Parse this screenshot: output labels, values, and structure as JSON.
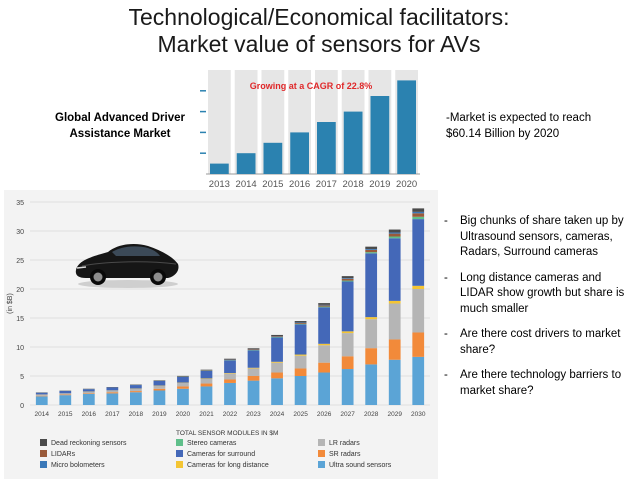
{
  "slide": {
    "title_line1": "Technological/Economical facilitators:",
    "title_line2": "Market value of sensors for AVs",
    "adas_label_line1": "Global Advanced Driver",
    "adas_label_line2": "Assistance Market",
    "adas_note_line1": "-Market is expected to reach",
    "adas_note_line2": "$60.14 Billion by 2020",
    "bullets": [
      "Big chunks of share taken up by Ultrasound sensors, cameras, Radars, Surround cameras",
      "Long distance cameras and LIDAR show growth but share is much smaller",
      "Are there cost drivers to market share?",
      "Are there technology barriers to market share?"
    ],
    "bullet_dash": "-"
  },
  "chart_data": [
    {
      "type": "bar",
      "title": "Growing at a CAGR of 22.8%",
      "categories": [
        "2013",
        "2014",
        "2015",
        "2016",
        "2017",
        "2018",
        "2019",
        "2020"
      ],
      "values": [
        1,
        2,
        3,
        4,
        5,
        6,
        7.5,
        9
      ],
      "ylim": [
        0,
        10
      ],
      "colors": {
        "bar": "#2b82b0",
        "band": "#e6e6e6",
        "title": "#e0282a"
      }
    },
    {
      "type": "bar",
      "stacked": true,
      "ylabel": "(in $B)",
      "xlabel": "",
      "legend_title": "TOTAL SENSOR MODULES IN $M",
      "ylim": [
        0,
        35
      ],
      "yticks": [
        0,
        5,
        10,
        15,
        20,
        25,
        30,
        35
      ],
      "categories": [
        "2014",
        "2015",
        "2016",
        "2017",
        "2018",
        "2019",
        "2020",
        "2021",
        "2022",
        "2023",
        "2024",
        "2025",
        "2026",
        "2027",
        "2028",
        "2029",
        "2030"
      ],
      "series": [
        {
          "name": "Ultra sound sensors",
          "color": "#5ba4d6",
          "values": [
            1.5,
            1.7,
            1.9,
            2.0,
            2.2,
            2.5,
            2.8,
            3.2,
            3.8,
            4.2,
            4.6,
            5.0,
            5.6,
            6.2,
            7.0,
            7.8,
            8.3
          ]
        },
        {
          "name": "SR radars",
          "color": "#f28a3a",
          "values": [
            0.1,
            0.1,
            0.1,
            0.2,
            0.2,
            0.3,
            0.4,
            0.5,
            0.6,
            0.8,
            1.0,
            1.3,
            1.7,
            2.2,
            2.8,
            3.5,
            4.2
          ]
        },
        {
          "name": "LR radars",
          "color": "#b5b5b5",
          "values": [
            0.2,
            0.2,
            0.3,
            0.3,
            0.4,
            0.5,
            0.6,
            0.8,
            1.0,
            1.3,
            1.7,
            2.2,
            3.0,
            4.0,
            5.0,
            6.2,
            7.5
          ]
        },
        {
          "name": "Cameras for long distance",
          "color": "#f4c534",
          "values": [
            0.02,
            0.02,
            0.03,
            0.03,
            0.04,
            0.05,
            0.06,
            0.08,
            0.1,
            0.12,
            0.15,
            0.2,
            0.25,
            0.3,
            0.35,
            0.45,
            0.55
          ]
        },
        {
          "name": "Cameras for surround",
          "color": "#4468b8",
          "values": [
            0.3,
            0.4,
            0.4,
            0.5,
            0.6,
            0.8,
            1.0,
            1.3,
            2.2,
            3.0,
            4.2,
            5.2,
            6.3,
            8.6,
            11.0,
            10.8,
            11.5
          ]
        },
        {
          "name": "Stereo cameras",
          "color": "#5fbf8a",
          "values": [
            0.01,
            0.01,
            0.01,
            0.01,
            0.02,
            0.02,
            0.03,
            0.04,
            0.05,
            0.06,
            0.08,
            0.1,
            0.12,
            0.15,
            0.2,
            0.3,
            0.4
          ]
        },
        {
          "name": "LIDARs",
          "color": "#9a5a3a",
          "values": [
            0.0,
            0.0,
            0.0,
            0.0,
            0.0,
            0.01,
            0.02,
            0.03,
            0.05,
            0.08,
            0.1,
            0.15,
            0.2,
            0.3,
            0.4,
            0.5,
            0.6
          ]
        },
        {
          "name": "Micro bolometers",
          "color": "#3a78b8",
          "values": [
            0.0,
            0.0,
            0.0,
            0.0,
            0.0,
            0.0,
            0.01,
            0.02,
            0.03,
            0.04,
            0.05,
            0.08,
            0.1,
            0.12,
            0.15,
            0.2,
            0.25
          ]
        },
        {
          "name": "Dead reckoning sensors",
          "color": "#4a4a4a",
          "values": [
            0.05,
            0.05,
            0.06,
            0.06,
            0.07,
            0.08,
            0.1,
            0.12,
            0.15,
            0.18,
            0.2,
            0.25,
            0.3,
            0.35,
            0.4,
            0.5,
            0.6
          ]
        }
      ],
      "legend_order": [
        "Dead reckoning sensors",
        "Stereo cameras",
        "LR radars",
        "LIDARs",
        "Cameras for surround",
        "SR radars",
        "Micro bolometers",
        "Cameras for long distance",
        "Ultra sound sensors"
      ]
    }
  ]
}
